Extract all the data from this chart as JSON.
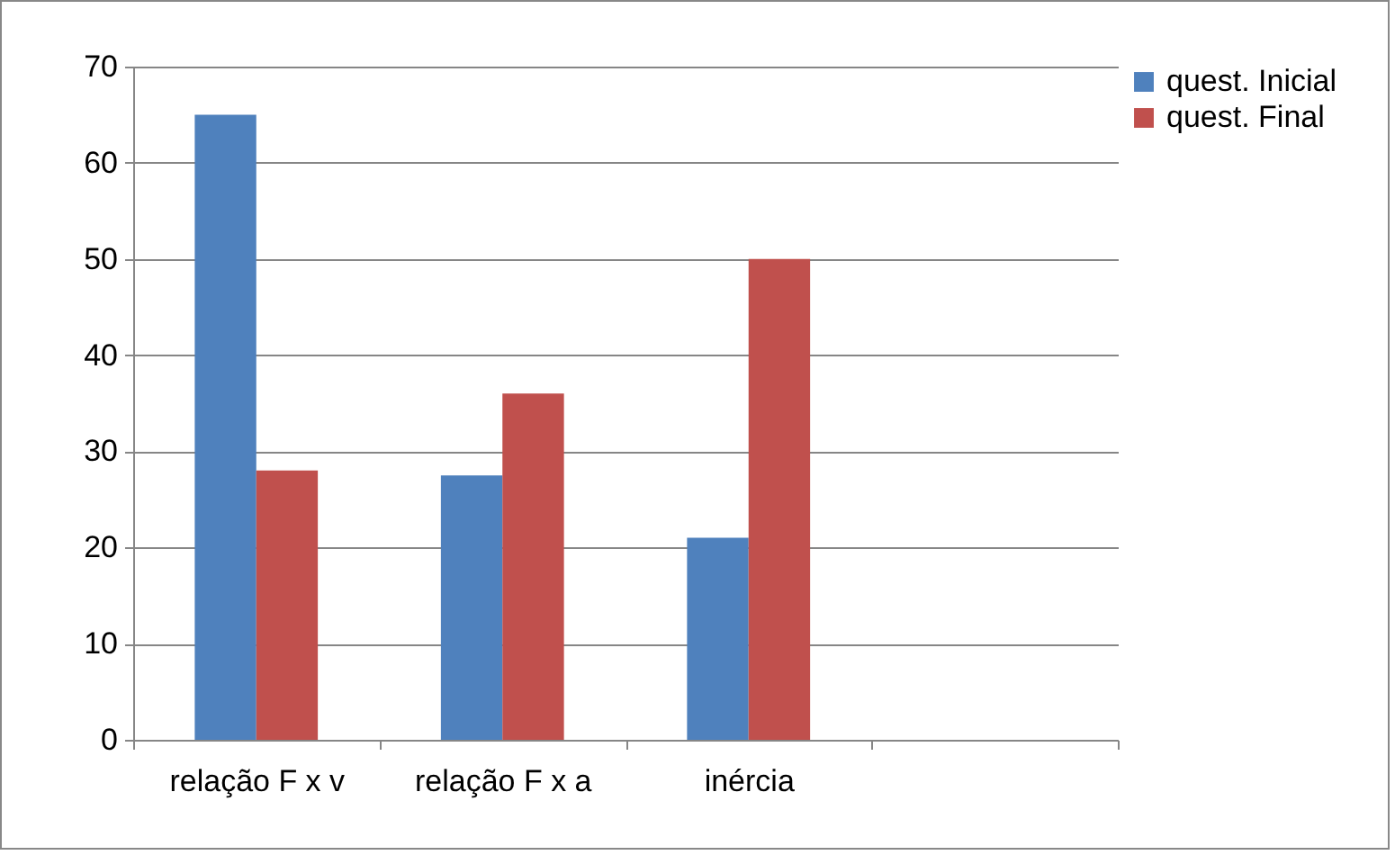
{
  "chart_data": {
    "type": "bar",
    "categories": [
      "relação F x v",
      "relação F x a",
      "inércia",
      null
    ],
    "series": [
      {
        "name": "quest. Inicial",
        "color": "#4f81bd",
        "values": [
          65,
          27.5,
          21,
          null
        ]
      },
      {
        "name": "quest. Final",
        "color": "#c0504d",
        "values": [
          28,
          36,
          50,
          null
        ]
      }
    ],
    "ylim": [
      0,
      70
    ],
    "yticks": [
      0,
      10,
      20,
      30,
      40,
      50,
      60,
      70
    ],
    "grid": "y",
    "legend": "right"
  }
}
